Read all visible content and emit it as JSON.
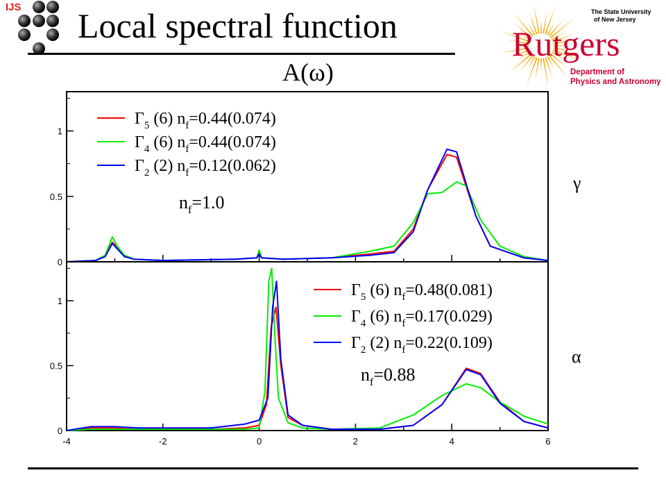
{
  "header": {
    "institute_logo_text": "IJS",
    "title": "Local spectral function"
  },
  "university": {
    "name_line1": "The State University",
    "name_line2": "of New Jersey",
    "wordmark": "Rutgers",
    "department_line1": "Department of",
    "department_line2": "Physics and Astronomy",
    "brand_color": "#f5a800",
    "red_color": "#cc0033"
  },
  "chart_data": [
    {
      "type": "line",
      "title": "A(ω)",
      "phase_label": "γ",
      "xlim": [
        -4,
        6
      ],
      "ylim": [
        0,
        1.3
      ],
      "yticks": [
        0,
        0.5,
        1
      ],
      "ytick_labels": [
        "0",
        "0.5",
        "1"
      ],
      "occupancy_label": "nf=1.0",
      "series": [
        {
          "name": "Γ5 (6) nf=0.44(0.074)",
          "color": "#ff0000",
          "x": [
            -4,
            -3.4,
            -3.2,
            -3.05,
            -2.95,
            -2.8,
            -2.6,
            -2,
            -0.5,
            -0.05,
            0,
            0.05,
            0.5,
            1.5,
            2.3,
            2.8,
            3.2,
            3.5,
            3.9,
            4.1,
            4.5,
            4.8,
            5.5,
            6
          ],
          "y": [
            0,
            0.01,
            0.04,
            0.15,
            0.11,
            0.04,
            0.02,
            0.01,
            0.02,
            0.03,
            0.07,
            0.03,
            0.02,
            0.03,
            0.06,
            0.08,
            0.25,
            0.55,
            0.82,
            0.8,
            0.35,
            0.12,
            0.03,
            0.01
          ]
        },
        {
          "name": "Γ4 (6) nf=0.44(0.074)",
          "color": "#00ee00",
          "x": [
            -4,
            -3.4,
            -3.2,
            -3.05,
            -2.95,
            -2.8,
            -2.6,
            -2,
            -0.5,
            -0.05,
            0,
            0.05,
            0.5,
            1.5,
            2.3,
            2.8,
            3.2,
            3.5,
            3.8,
            4.1,
            4.3,
            4.6,
            5,
            5.5,
            6
          ],
          "y": [
            0,
            0.01,
            0.05,
            0.19,
            0.12,
            0.05,
            0.02,
            0.01,
            0.02,
            0.03,
            0.09,
            0.03,
            0.02,
            0.03,
            0.08,
            0.12,
            0.3,
            0.52,
            0.53,
            0.61,
            0.58,
            0.32,
            0.12,
            0.04,
            0.01
          ]
        },
        {
          "name": "Γ2 (2) nf=0.12(0.062)",
          "color": "#0000ff",
          "x": [
            -4,
            -3.4,
            -3.2,
            -3.05,
            -2.95,
            -2.8,
            -2.6,
            -2,
            -0.5,
            -0.05,
            0,
            0.05,
            0.5,
            1.5,
            2.3,
            2.8,
            3.2,
            3.5,
            3.9,
            4.1,
            4.5,
            4.8,
            5.5,
            6
          ],
          "y": [
            0,
            0.01,
            0.04,
            0.14,
            0.1,
            0.04,
            0.02,
            0.01,
            0.02,
            0.03,
            0.06,
            0.03,
            0.02,
            0.03,
            0.05,
            0.07,
            0.23,
            0.55,
            0.86,
            0.84,
            0.35,
            0.12,
            0.03,
            0.01
          ]
        }
      ]
    },
    {
      "type": "line",
      "phase_label": "α",
      "xlabel": "",
      "xlim": [
        -4,
        6
      ],
      "ylim": [
        0,
        1.3
      ],
      "xticks": [
        -4,
        -2,
        0,
        2,
        4,
        6
      ],
      "xtick_labels": [
        "-4",
        "-2",
        "0",
        "2",
        "4",
        "6"
      ],
      "yticks": [
        0,
        0.5,
        1
      ],
      "ytick_labels": [
        "0",
        "0.5",
        "1"
      ],
      "occupancy_label": "nf=0.88",
      "series": [
        {
          "name": "Γ5 (6) nf=0.48(0.081)",
          "color": "#ff0000",
          "x": [
            -4,
            -3.5,
            -3,
            -2.5,
            -1,
            -0.3,
            0,
            0.15,
            0.25,
            0.35,
            0.45,
            0.6,
            0.9,
            1.5,
            2.5,
            3.2,
            3.8,
            4.3,
            4.6,
            5,
            5.5,
            6
          ],
          "y": [
            0,
            0.02,
            0.02,
            0.01,
            0.01,
            0.02,
            0.04,
            0.2,
            0.8,
            0.95,
            0.5,
            0.1,
            0.04,
            0.01,
            0.01,
            0.04,
            0.2,
            0.48,
            0.44,
            0.22,
            0.07,
            0.02
          ]
        },
        {
          "name": "Γ4 (6) nf=0.17(0.029)",
          "color": "#00ee00",
          "x": [
            -4,
            -3.5,
            -3,
            -2.5,
            -1,
            -0.3,
            0,
            0.12,
            0.2,
            0.26,
            0.33,
            0.4,
            0.6,
            0.9,
            1.5,
            2.5,
            3.2,
            3.8,
            4.3,
            4.6,
            5,
            5.5,
            6
          ],
          "y": [
            0,
            0.01,
            0.01,
            0.01,
            0.01,
            0.01,
            0.02,
            0.3,
            1.15,
            1.25,
            0.7,
            0.25,
            0.06,
            0.02,
            0.01,
            0.02,
            0.12,
            0.27,
            0.36,
            0.33,
            0.22,
            0.11,
            0.05
          ]
        },
        {
          "name": "Γ2 (2) nf=0.22(0.109)",
          "color": "#0000ff",
          "x": [
            -4,
            -3.5,
            -3,
            -2.5,
            -1,
            -0.3,
            0,
            0.18,
            0.28,
            0.36,
            0.45,
            0.6,
            0.9,
            1.5,
            2.5,
            3.2,
            3.8,
            4.3,
            4.6,
            5,
            5.5,
            6
          ],
          "y": [
            0,
            0.03,
            0.03,
            0.02,
            0.02,
            0.05,
            0.08,
            0.25,
            0.95,
            1.15,
            0.55,
            0.12,
            0.04,
            0.01,
            0.01,
            0.04,
            0.2,
            0.47,
            0.43,
            0.21,
            0.07,
            0.02
          ]
        }
      ]
    }
  ]
}
